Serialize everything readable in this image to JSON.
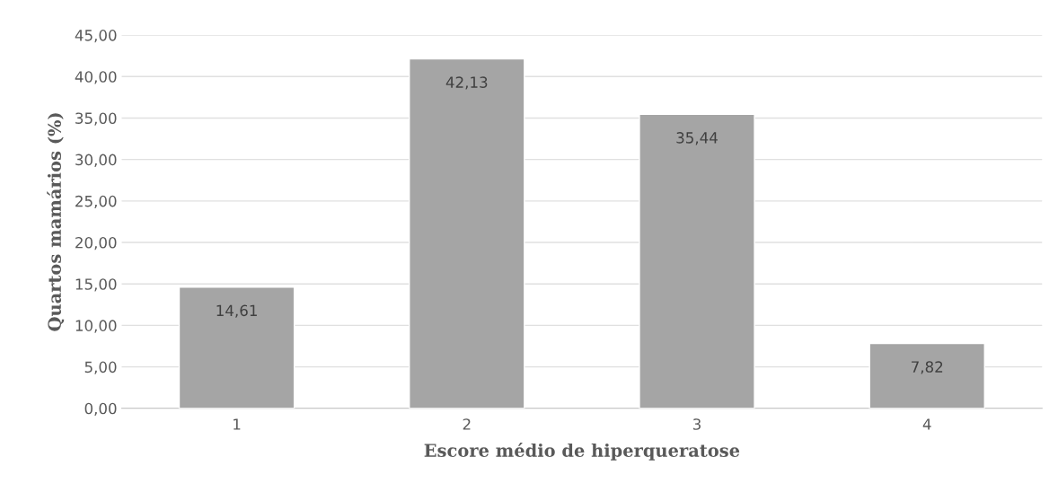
{
  "chart_data": {
    "type": "bar",
    "xlabel": "Escore médio de hiperqueratose",
    "ylabel": "Quartos mamários (%)",
    "categories": [
      "1",
      "2",
      "3",
      "4"
    ],
    "values": [
      14.61,
      42.13,
      35.44,
      7.82
    ],
    "value_labels": [
      "14,61",
      "42,13",
      "35,44",
      "7,82"
    ],
    "color": "#a5a5a5",
    "ylim": [
      0,
      45
    ],
    "yticks": [
      {
        "value": 0,
        "label": "0,00"
      },
      {
        "value": 5,
        "label": "5,00"
      },
      {
        "value": 10,
        "label": "10,00"
      },
      {
        "value": 15,
        "label": "15,00"
      },
      {
        "value": 20,
        "label": "20,00"
      },
      {
        "value": 25,
        "label": "25,00"
      },
      {
        "value": 30,
        "label": "30,00"
      },
      {
        "value": 35,
        "label": "35,00"
      },
      {
        "value": 40,
        "label": "40,00"
      },
      {
        "value": 45,
        "label": "45,00"
      }
    ],
    "grid": "y",
    "legend": false
  }
}
